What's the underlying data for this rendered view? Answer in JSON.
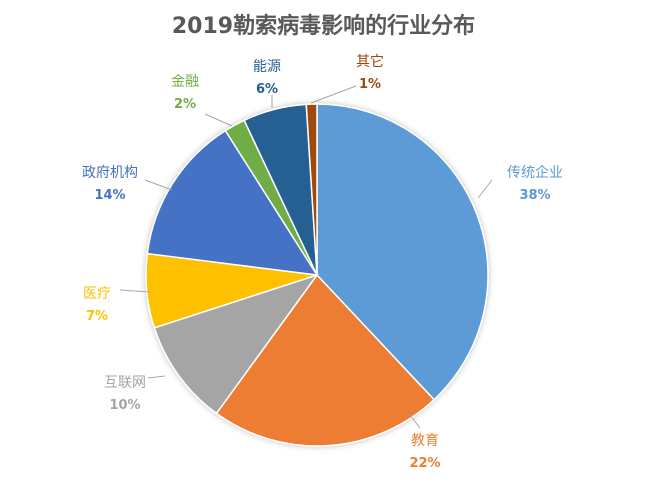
{
  "chart_data": {
    "type": "pie",
    "title": "2019勒索病毒影响的行业分布",
    "start_angle": "top, clockwise",
    "slices": [
      {
        "label": "传统企业",
        "value": 38,
        "display": "38%",
        "color": "#5B9BD5"
      },
      {
        "label": "教育",
        "value": 22,
        "display": "22%",
        "color": "#ED7D31"
      },
      {
        "label": "互联网",
        "value": 10,
        "display": "10%",
        "color": "#A5A5A5"
      },
      {
        "label": "医疗",
        "value": 7,
        "display": "7%",
        "color": "#FFC000"
      },
      {
        "label": "政府机构",
        "value": 14,
        "display": "14%",
        "color": "#4472C4"
      },
      {
        "label": "金融",
        "value": 2,
        "display": "2%",
        "color": "#70AD47"
      },
      {
        "label": "能源",
        "value": 6,
        "display": "6%",
        "color": "#255E91"
      },
      {
        "label": "其它",
        "value": 1,
        "display": "1%",
        "color": "#9E480E"
      }
    ],
    "legend": "none",
    "data_labels": "outside with leader lines"
  }
}
